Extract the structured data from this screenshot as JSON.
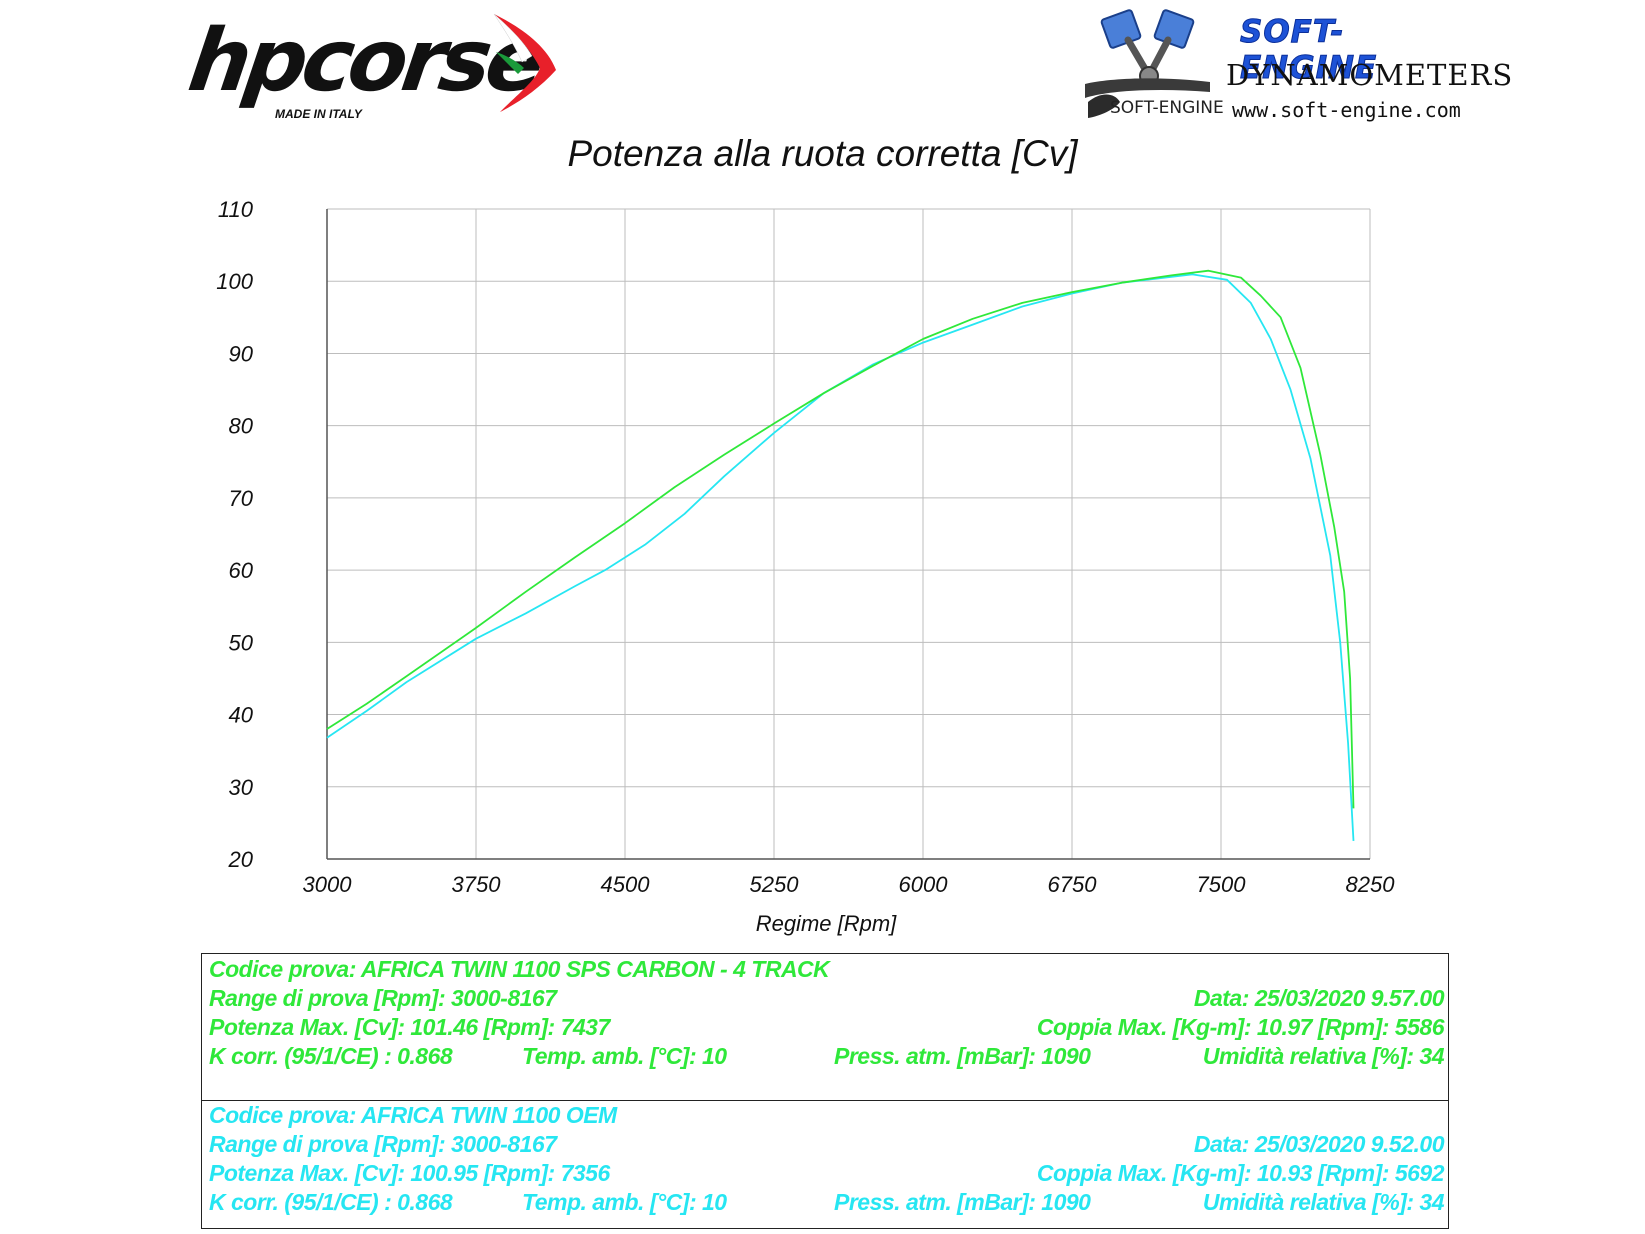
{
  "logos": {
    "hpcorse": {
      "name": "hpcorse",
      "tagline": "MADE IN ITALY"
    },
    "softengine": {
      "name": "SOFT-ENGINE",
      "subtitle": "DYNAMOMETERS",
      "website": "www.soft-engine.com",
      "mark": "SOFT-ENGINE"
    }
  },
  "colors": {
    "green": "#2fe83a",
    "cyan": "#26e6f2",
    "grid": "#bdbdbd"
  },
  "chart_data": {
    "type": "line",
    "title": "Potenza alla ruota corretta [Cv]",
    "xlabel": "Regime [Rpm]",
    "ylabel": "",
    "xlim": [
      3000,
      8250
    ],
    "ylim": [
      20,
      110
    ],
    "xticks": [
      3000,
      3750,
      4500,
      5250,
      6000,
      6750,
      7500,
      8250
    ],
    "yticks": [
      20,
      30,
      40,
      50,
      60,
      70,
      80,
      90,
      100,
      110
    ],
    "grid": true,
    "legend": "none",
    "series": [
      {
        "color": "#2fe83a",
        "x": [
          3000,
          3200,
          3400,
          3750,
          4000,
          4250,
          4500,
          4750,
          5000,
          5250,
          5500,
          5750,
          6000,
          6250,
          6500,
          6750,
          7000,
          7250,
          7437,
          7600,
          7700,
          7800,
          7900,
          8000,
          8070,
          8120,
          8150,
          8167
        ],
        "values": [
          38.0,
          41.5,
          45.3,
          52.0,
          57.0,
          61.8,
          66.5,
          71.5,
          76.0,
          80.3,
          84.5,
          88.3,
          92.0,
          94.8,
          97.0,
          98.5,
          99.8,
          100.8,
          101.46,
          100.5,
          98.0,
          95.0,
          88.0,
          76.0,
          66.0,
          57.0,
          45.0,
          27.0
        ]
      },
      {
        "color": "#26e6f2",
        "x": [
          3000,
          3200,
          3400,
          3750,
          4000,
          4250,
          4400,
          4600,
          4800,
          5000,
          5250,
          5500,
          5750,
          6000,
          6250,
          6500,
          6750,
          7000,
          7356,
          7530,
          7650,
          7750,
          7850,
          7950,
          8050,
          8100,
          8140,
          8167
        ],
        "values": [
          36.8,
          40.5,
          44.5,
          50.5,
          54.0,
          57.8,
          60.0,
          63.5,
          67.8,
          73.0,
          79.0,
          84.5,
          88.5,
          91.5,
          94.0,
          96.5,
          98.3,
          99.8,
          100.95,
          100.2,
          97.0,
          92.0,
          85.0,
          75.5,
          62.0,
          50.0,
          36.0,
          22.5
        ]
      }
    ]
  },
  "runs": [
    {
      "color": "green",
      "codice": "Codice prova: AFRICA TWIN 1100  SPS CARBON  -  4 TRACK",
      "range": "Range di prova [Rpm]: 3000-8167",
      "data": "Data: 25/03/2020  9.57.00",
      "potenza": "Potenza Max. [Cv]: 101.46  [Rpm]: 7437",
      "coppia": "Coppia Max. [Kg-m]: 10.97  [Rpm]: 5586",
      "kcorr": "K corr. (95/1/CE) : 0.868",
      "temp": "Temp. amb. [°C]: 10",
      "press": "Press. atm. [mBar]: 1090",
      "umid": "Umidità relativa [%]: 34"
    },
    {
      "color": "cyan",
      "codice": "Codice prova: AFRICA TWIN 1100  OEM",
      "range": "Range di prova [Rpm]: 3000-8167",
      "data": "Data: 25/03/2020  9.52.00",
      "potenza": "Potenza Max. [Cv]: 100.95  [Rpm]: 7356",
      "coppia": "Coppia Max. [Kg-m]: 10.93  [Rpm]: 5692",
      "kcorr": "K corr. (95/1/CE) : 0.868",
      "temp": "Temp. amb. [°C]: 10",
      "press": "Press. atm. [mBar]: 1090",
      "umid": "Umidità relativa [%]: 34"
    }
  ]
}
